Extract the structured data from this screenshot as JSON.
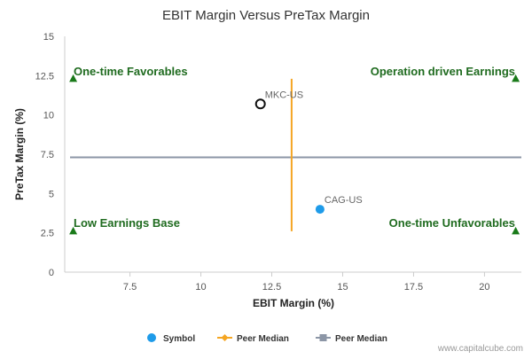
{
  "chart_data": {
    "type": "scatter",
    "title": "EBIT Margin Versus PreTax Margin",
    "xlabel": "EBIT Margin (%)",
    "ylabel": "PreTax Margin (%)",
    "xlim": [
      5.2,
      21.3
    ],
    "ylim": [
      0,
      15
    ],
    "x_ticks": [
      {
        "value": 7.5,
        "label": "7.5"
      },
      {
        "value": 10,
        "label": "10"
      },
      {
        "value": 12.5,
        "label": "12.5"
      },
      {
        "value": 15,
        "label": "15"
      },
      {
        "value": 17.5,
        "label": "17.5"
      },
      {
        "value": 20,
        "label": "20"
      }
    ],
    "y_ticks": [
      {
        "value": 0,
        "label": "0"
      },
      {
        "value": 2.5,
        "label": "2.5"
      },
      {
        "value": 5,
        "label": "5"
      },
      {
        "value": 7.5,
        "label": "7.5"
      },
      {
        "value": 10,
        "label": "10"
      },
      {
        "value": 12.5,
        "label": "12.5"
      },
      {
        "value": 15,
        "label": "15"
      }
    ],
    "grid": false,
    "points": [
      {
        "label": "MKC-US",
        "x": 12.1,
        "y": 10.7,
        "highlighted": true
      },
      {
        "label": "CAG-US",
        "x": 14.2,
        "y": 4.0,
        "highlighted": false
      }
    ],
    "peer_median_x": {
      "x": 13.2,
      "y_from": 2.6,
      "y_to": 12.3
    },
    "peer_median_y": {
      "y": 7.3
    },
    "quadrant_markers": [
      {
        "x": 5.5,
        "y": 12.3
      },
      {
        "x": 21.1,
        "y": 12.3
      },
      {
        "x": 5.5,
        "y": 2.6
      },
      {
        "x": 21.1,
        "y": 2.6
      }
    ],
    "quadrant_labels": {
      "top_left": "One-time Favorables",
      "top_right": "Operation driven Earnings",
      "bottom_left": "Low Earnings Base",
      "bottom_right": "One-time Unfavorables"
    },
    "legend": {
      "position": "bottom-center",
      "items": [
        {
          "label": "Symbol",
          "marker": "circle",
          "color": "#1e9be9"
        },
        {
          "label": "Peer Median",
          "marker": "diamond-line",
          "color": "#f5a623"
        },
        {
          "label": "Peer Median",
          "marker": "square-line",
          "color": "#8c96a6"
        }
      ]
    },
    "colors": {
      "symbol": "#1e9be9",
      "peer_median_x": "#f5a623",
      "peer_median_y": "#8c96a6",
      "quadrant": "#1a7a1a"
    }
  },
  "watermark": "www.capitalcube.com"
}
